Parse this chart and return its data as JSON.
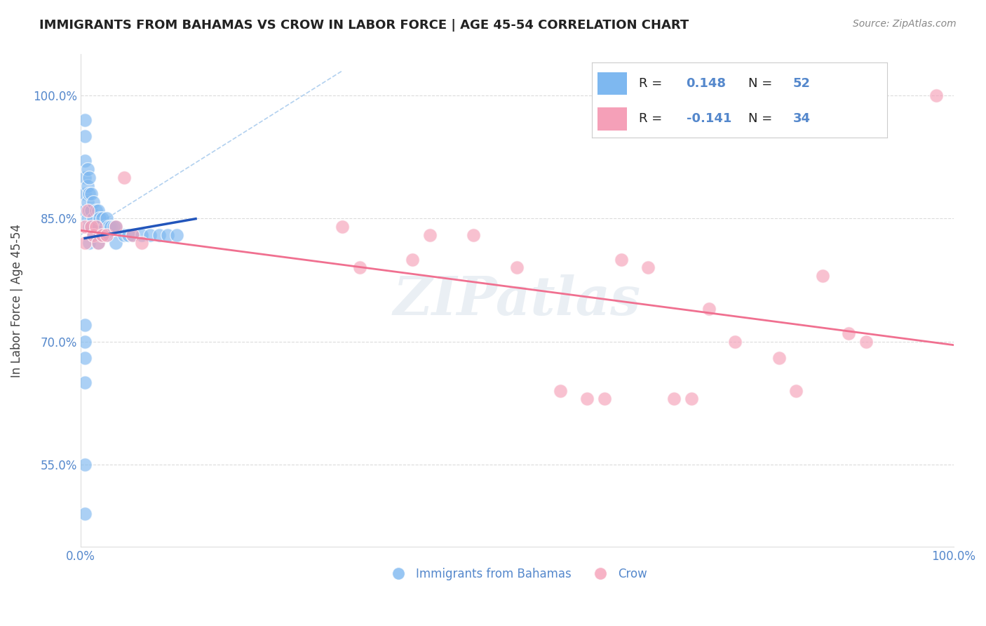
{
  "title": "IMMIGRANTS FROM BAHAMAS VS CROW IN LABOR FORCE | AGE 45-54 CORRELATION CHART",
  "source": "Source: ZipAtlas.com",
  "ylabel": "In Labor Force | Age 45-54",
  "blue_color": "#7EB8F0",
  "pink_color": "#F5A0B8",
  "blue_line_color": "#2255BB",
  "pink_line_color": "#F07090",
  "dash_line_color": "#AACCEE",
  "grid_color": "#CCCCCC",
  "legend_blue_label_R": "R =  0.148",
  "legend_blue_label_N": "N = 52",
  "legend_pink_label_R": "R = -0.141",
  "legend_pink_label_N": "N = 34",
  "legend_bottom_blue": "Immigrants from Bahamas",
  "legend_bottom_pink": "Crow",
  "background_color": "#FFFFFF",
  "watermark_text": "ZIPatlas",
  "title_color": "#222222",
  "source_color": "#888888",
  "tick_color": "#5588CC",
  "ylabel_color": "#444444",
  "blue_scatter_x": [
    0.005,
    0.005,
    0.005,
    0.005,
    0.005,
    0.005,
    0.008,
    0.008,
    0.008,
    0.008,
    0.01,
    0.01,
    0.01,
    0.01,
    0.01,
    0.012,
    0.012,
    0.012,
    0.015,
    0.015,
    0.015,
    0.018,
    0.018,
    0.02,
    0.02,
    0.02,
    0.022,
    0.022,
    0.025,
    0.025,
    0.028,
    0.03,
    0.03,
    0.032,
    0.035,
    0.038,
    0.04,
    0.04,
    0.05,
    0.055,
    0.06,
    0.07,
    0.08,
    0.09,
    0.1,
    0.11,
    0.005,
    0.005,
    0.005,
    0.005,
    0.005,
    0.005
  ],
  "blue_scatter_y": [
    0.97,
    0.95,
    0.92,
    0.9,
    0.88,
    0.86,
    0.91,
    0.89,
    0.87,
    0.85,
    0.9,
    0.88,
    0.86,
    0.84,
    0.82,
    0.88,
    0.86,
    0.84,
    0.87,
    0.85,
    0.83,
    0.86,
    0.84,
    0.86,
    0.84,
    0.82,
    0.85,
    0.83,
    0.85,
    0.83,
    0.84,
    0.85,
    0.83,
    0.84,
    0.84,
    0.84,
    0.84,
    0.82,
    0.83,
    0.83,
    0.83,
    0.83,
    0.83,
    0.83,
    0.83,
    0.83,
    0.72,
    0.7,
    0.68,
    0.65,
    0.55,
    0.49
  ],
  "pink_scatter_x": [
    0.005,
    0.005,
    0.008,
    0.012,
    0.015,
    0.018,
    0.02,
    0.025,
    0.03,
    0.04,
    0.05,
    0.06,
    0.07,
    0.3,
    0.32,
    0.38,
    0.4,
    0.45,
    0.5,
    0.55,
    0.58,
    0.6,
    0.62,
    0.65,
    0.68,
    0.7,
    0.72,
    0.75,
    0.8,
    0.82,
    0.85,
    0.88,
    0.9,
    0.98
  ],
  "pink_scatter_y": [
    0.84,
    0.82,
    0.86,
    0.84,
    0.83,
    0.84,
    0.82,
    0.83,
    0.83,
    0.84,
    0.9,
    0.83,
    0.82,
    0.84,
    0.79,
    0.8,
    0.83,
    0.83,
    0.79,
    0.64,
    0.63,
    0.63,
    0.8,
    0.79,
    0.63,
    0.63,
    0.74,
    0.7,
    0.68,
    0.64,
    0.78,
    0.71,
    0.7,
    1.0
  ],
  "xlim": [
    0.0,
    1.0
  ],
  "ylim": [
    0.45,
    1.05
  ],
  "ytick_vals": [
    0.55,
    0.7,
    0.85,
    1.0
  ],
  "ytick_labels": [
    "55.0%",
    "70.0%",
    "85.0%",
    "100.0%"
  ],
  "xtick_vals": [
    0.0,
    1.0
  ],
  "xtick_labels": [
    "0.0%",
    "100.0%"
  ],
  "blue_trend_x": [
    0.0,
    0.14
  ],
  "pink_trend_x": [
    0.0,
    1.0
  ]
}
